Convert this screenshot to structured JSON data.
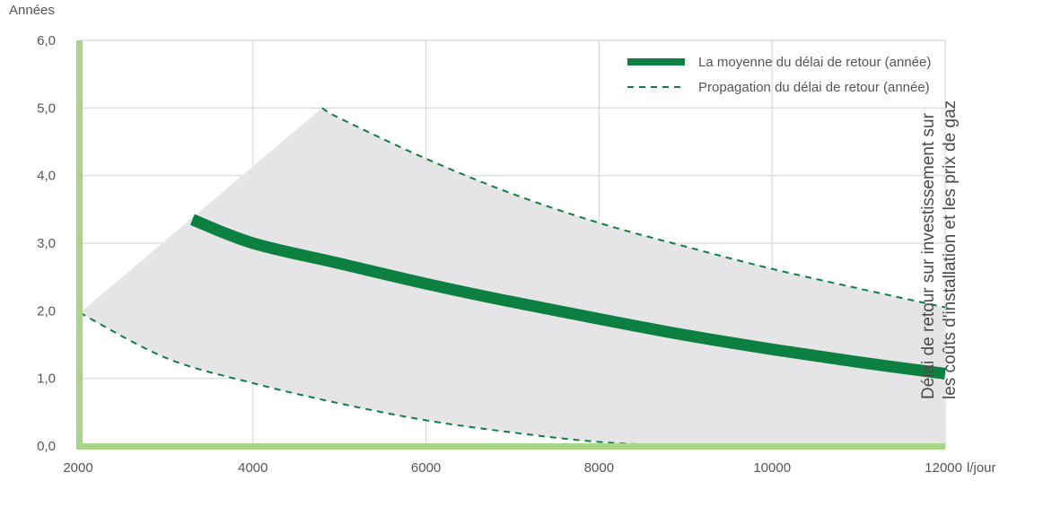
{
  "chart_data": {
    "type": "line",
    "y_unit_label": "Années",
    "x_unit_label": "l/jour",
    "side_title_lines": [
      "Délai de retour sur investissement sur",
      "les coûts d'installation et les prix de gaz"
    ],
    "xlim": [
      2000,
      12000
    ],
    "ylim": [
      0,
      6
    ],
    "x_ticks": [
      2000,
      4000,
      6000,
      8000,
      10000,
      12000
    ],
    "x_tick_labels": [
      "2000",
      "4000",
      "6000",
      "8000",
      "10000",
      "12000"
    ],
    "y_ticks": [
      0,
      1,
      2,
      3,
      4,
      5,
      6
    ],
    "y_tick_labels": [
      "0,0",
      "1,0",
      "2,0",
      "3,0",
      "4,0",
      "5,0",
      "6,0"
    ],
    "grid": true,
    "legend_position": "top-right",
    "series": [
      {
        "name": "La moyenne du délai de retour (année)",
        "style": "solid-thick",
        "color": "#0b8040",
        "x": [
          3300,
          4000,
          5000,
          6000,
          7000,
          8000,
          9000,
          10000,
          11000,
          12000
        ],
        "y": [
          3.35,
          3.0,
          2.7,
          2.4,
          2.13,
          1.88,
          1.64,
          1.43,
          1.24,
          1.07
        ]
      },
      {
        "name": "Propagation du délai de retour (année)",
        "style": "dashed",
        "color": "#0b8040",
        "upper": {
          "x": [
            4800,
            5000,
            6000,
            7000,
            8000,
            9000,
            10000,
            11000,
            12000
          ],
          "y": [
            5.0,
            4.85,
            4.25,
            3.73,
            3.3,
            2.95,
            2.62,
            2.33,
            2.05
          ]
        },
        "lower": {
          "x": [
            1950,
            3000,
            4000,
            5000,
            6000,
            7000,
            8000,
            9000,
            10000
          ],
          "y": [
            1.97,
            1.3,
            0.93,
            0.63,
            0.38,
            0.2,
            0.06,
            0.0,
            0.0
          ]
        }
      }
    ],
    "colors": {
      "band_fill": "#e5e5e7",
      "axis_accent": "#a8d688",
      "grid": "#d8d8d8",
      "line": "#0b8040"
    }
  }
}
